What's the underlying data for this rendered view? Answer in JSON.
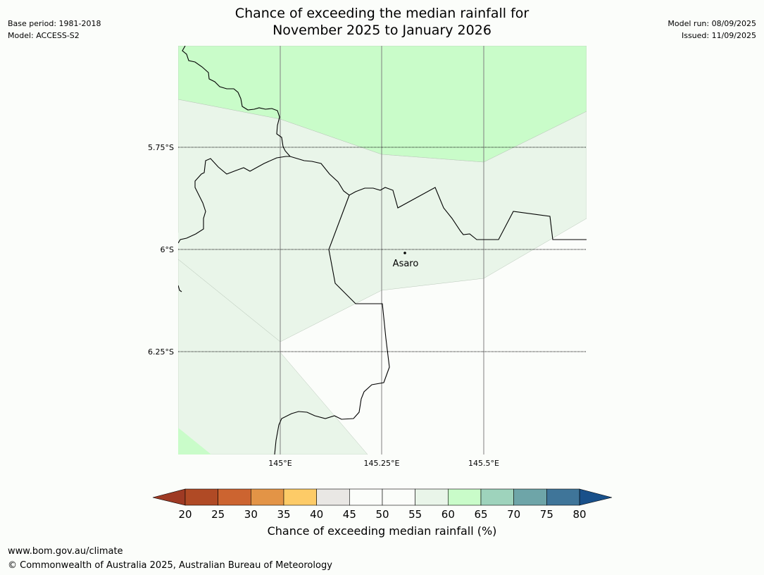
{
  "header": {
    "title_line1": "Chance of exceeding the median rainfall for",
    "title_line2": "November 2025 to January 2026",
    "base_period": "Base period: 1981-2018",
    "model": "Model: ACCESS-S2",
    "model_run": "Model run: 08/09/2025",
    "issued": "Issued: 11/09/2025"
  },
  "map": {
    "lat_labels": [
      "5.75°S",
      "6°S",
      "6.25°S"
    ],
    "lon_labels": [
      "145°E",
      "145.25°E",
      "145.5°E"
    ],
    "place": "Asaro",
    "colors": {
      "band_60_65": "#c9fcc9",
      "band_55_60": "#e9f5e9",
      "band_45_55": "#fbfdfa",
      "border": "#000000",
      "meridian": "#808080"
    }
  },
  "colorbar": {
    "ticks": [
      "20",
      "25",
      "30",
      "35",
      "40",
      "45",
      "50",
      "55",
      "60",
      "65",
      "70",
      "75",
      "80"
    ],
    "colors": [
      "#b04a25",
      "#cc6430",
      "#e39446",
      "#fdcb67",
      "#e9e7e4",
      "#fbfdfa",
      "#fbfdfa",
      "#e9f5e9",
      "#c9fcc9",
      "#9ed3bc",
      "#6ea5a8",
      "#3f7599"
    ],
    "low_extend_color": "#9e3a24",
    "high_extend_color": "#19508a",
    "label": "Chance of exceeding median rainfall (%)"
  },
  "footer": {
    "url": "www.bom.gov.au/climate",
    "copyright": "© Commonwealth of Australia 2025, Australian Bureau of Meteorology"
  }
}
